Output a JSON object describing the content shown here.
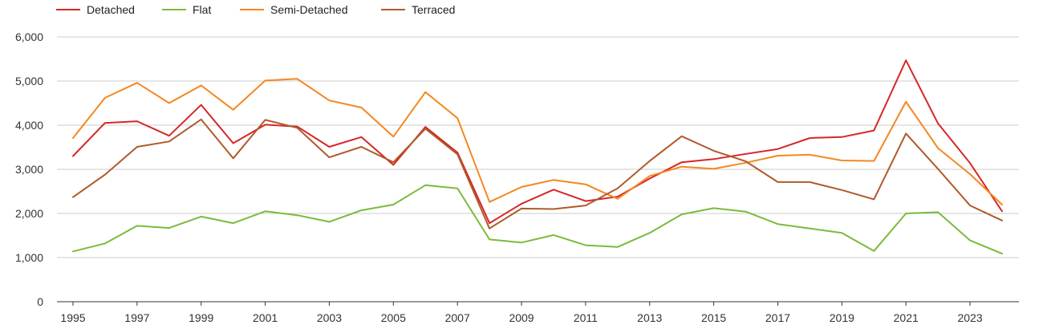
{
  "chart_data": {
    "type": "line",
    "title": "",
    "xlabel": "",
    "ylabel": "",
    "x": [
      1995,
      1996,
      1997,
      1998,
      1999,
      2000,
      2001,
      2002,
      2003,
      2004,
      2005,
      2006,
      2007,
      2008,
      2009,
      2010,
      2011,
      2012,
      2013,
      2014,
      2015,
      2016,
      2017,
      2018,
      2019,
      2020,
      2021,
      2022,
      2023,
      2024
    ],
    "x_tick_values": [
      1995,
      1997,
      1999,
      2001,
      2003,
      2005,
      2007,
      2009,
      2011,
      2013,
      2015,
      2017,
      2019,
      2021,
      2023
    ],
    "x_tick_labels": [
      "1995",
      "1997",
      "1999",
      "2001",
      "2003",
      "2005",
      "2007",
      "2009",
      "2011",
      "2013",
      "2015",
      "2017",
      "2019",
      "2021",
      "2023"
    ],
    "y_tick_values": [
      0,
      1000,
      2000,
      3000,
      4000,
      5000,
      6000
    ],
    "y_tick_labels": [
      "0",
      "1,000",
      "2,000",
      "3,000",
      "4,000",
      "5,000",
      "6,000"
    ],
    "ylim": [
      0,
      6000
    ],
    "xlim": [
      1995,
      2024
    ],
    "grid": "horizontal",
    "legend_position": "top-left",
    "series": [
      {
        "name": "Detached",
        "color": "#d62728",
        "values": [
          3300,
          4050,
          4090,
          3760,
          4460,
          3590,
          4010,
          3970,
          3510,
          3730,
          3100,
          3960,
          3380,
          1780,
          2220,
          2540,
          2280,
          2380,
          2790,
          3160,
          3230,
          3350,
          3460,
          3710,
          3730,
          3880,
          5470,
          4040,
          3140,
          2050
        ]
      },
      {
        "name": "Flat",
        "color": "#7cba3c",
        "values": [
          1140,
          1320,
          1720,
          1670,
          1930,
          1780,
          2050,
          1960,
          1810,
          2070,
          2200,
          2640,
          2570,
          1410,
          1340,
          1510,
          1280,
          1240,
          1560,
          1980,
          2120,
          2040,
          1760,
          1660,
          1560,
          1150,
          2000,
          2030,
          1390,
          1090
        ]
      },
      {
        "name": "Semi-Detached",
        "color": "#f5871f",
        "values": [
          3710,
          4620,
          4960,
          4500,
          4900,
          4350,
          5010,
          5050,
          4560,
          4400,
          3740,
          4750,
          4160,
          2260,
          2600,
          2760,
          2660,
          2330,
          2850,
          3060,
          3010,
          3150,
          3310,
          3330,
          3200,
          3190,
          4530,
          3480,
          2890,
          2200
        ]
      },
      {
        "name": "Terraced",
        "color": "#b05a2a",
        "values": [
          2370,
          2880,
          3510,
          3630,
          4130,
          3250,
          4120,
          3940,
          3270,
          3510,
          3160,
          3920,
          3340,
          1660,
          2110,
          2100,
          2180,
          2570,
          3190,
          3750,
          3420,
          3180,
          2710,
          2710,
          2530,
          2320,
          3810,
          3010,
          2180,
          1840
        ]
      }
    ]
  }
}
